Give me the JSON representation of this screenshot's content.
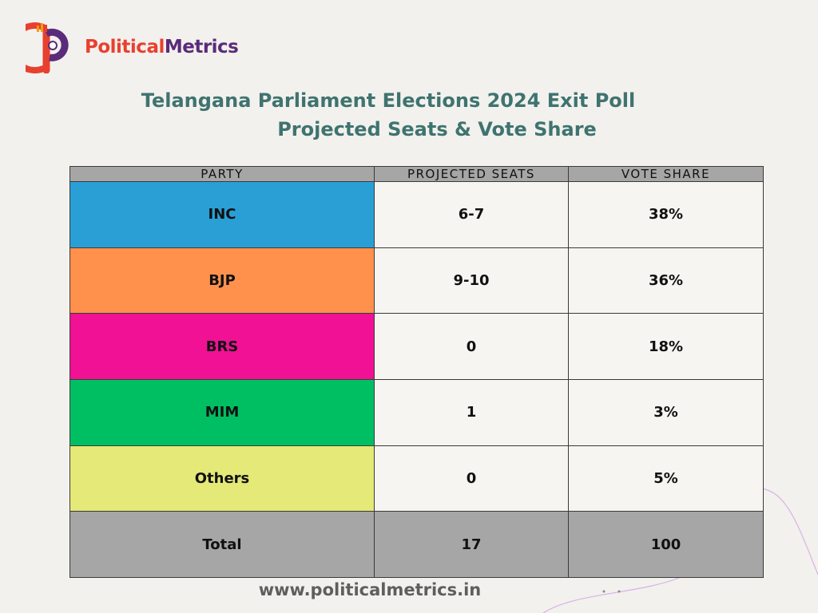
{
  "brand": {
    "word1": "Political",
    "word2": "Metrics",
    "colors": {
      "red": "#e8402f",
      "purple": "#5a2b7a",
      "orange": "#f39c12"
    }
  },
  "title": {
    "line1": "Telangana Parliament Elections 2024 Exit Poll",
    "line2": "Projected Seats & Vote Share"
  },
  "chart_data": {
    "type": "table",
    "columns": [
      "PARTY",
      "PROJECTED SEATS",
      "VOTE SHARE"
    ],
    "rows": [
      {
        "party": "INC",
        "seats": "6-7",
        "vote_share": "38%",
        "color": "#2a9fd6"
      },
      {
        "party": "BJP",
        "seats": "9-10",
        "vote_share": "36%",
        "color": "#ff914d"
      },
      {
        "party": "BRS",
        "seats": "0",
        "vote_share": "18%",
        "color": "#f01195"
      },
      {
        "party": "MIM",
        "seats": "1",
        "vote_share": "3%",
        "color": "#00bf63"
      },
      {
        "party": "Others",
        "seats": "0",
        "vote_share": "5%",
        "color": "#e4e977"
      }
    ],
    "total": {
      "label": "Total",
      "seats": "17",
      "vote_share": "100"
    }
  },
  "footer": {
    "url": "www.politicalmetrics.in"
  }
}
